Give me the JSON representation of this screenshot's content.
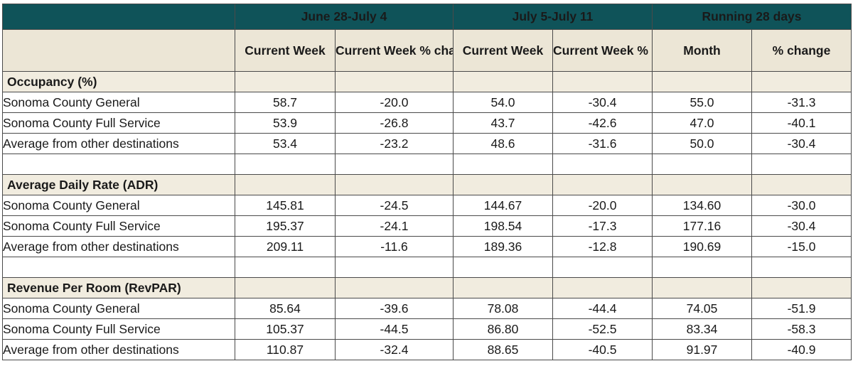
{
  "header": {
    "groups": [
      "June 28-July 4",
      "July 5-July 11",
      "Running 28 days"
    ],
    "subheaders": [
      "Current Week",
      "Current Week % change",
      "Current Week",
      "Current Week % change",
      "Month",
      "% change"
    ]
  },
  "sections": [
    {
      "title": "Occupancy (%)",
      "rows": [
        {
          "label": "Sonoma County General",
          "values": [
            "58.7",
            "-20.0",
            "54.0",
            "-30.4",
            "55.0",
            "-31.3"
          ]
        },
        {
          "label": "Sonoma County Full Service",
          "values": [
            "53.9",
            "-26.8",
            "43.7",
            "-42.6",
            "47.0",
            "-40.1"
          ]
        },
        {
          "label": "Average from other destinations",
          "values": [
            "53.4",
            "-23.2",
            "48.6",
            "-31.6",
            "50.0",
            "-30.4"
          ]
        }
      ]
    },
    {
      "title": "Average Daily Rate (ADR)",
      "rows": [
        {
          "label": "Sonoma County General",
          "values": [
            "145.81",
            "-24.5",
            "144.67",
            "-20.0",
            "134.60",
            "-30.0"
          ]
        },
        {
          "label": "Sonoma County Full Service",
          "values": [
            "195.37",
            "-24.1",
            "198.54",
            "-17.3",
            "177.16",
            "-30.4"
          ]
        },
        {
          "label": "Average from other destinations",
          "values": [
            "209.11",
            "-11.6",
            "189.36",
            "-12.8",
            "190.69",
            "-15.0"
          ]
        }
      ]
    },
    {
      "title": "Revenue Per Room (RevPAR)",
      "rows": [
        {
          "label": "Sonoma County General",
          "values": [
            "85.64",
            "-39.6",
            "78.08",
            "-44.4",
            "74.05",
            "-51.9"
          ]
        },
        {
          "label": "Sonoma County Full Service",
          "values": [
            "105.37",
            "-44.5",
            "86.80",
            "-52.5",
            "83.34",
            "-58.3"
          ]
        },
        {
          "label": "Average from other destinations",
          "values": [
            "110.87",
            "-32.4",
            "88.65",
            "-40.5",
            "91.97",
            "-40.9"
          ]
        }
      ]
    }
  ],
  "colors": {
    "header_background": "#0f5359",
    "header_text": "#ffffff",
    "subheader_background": "#ece6d6",
    "section_background": "#f1ecdf"
  }
}
